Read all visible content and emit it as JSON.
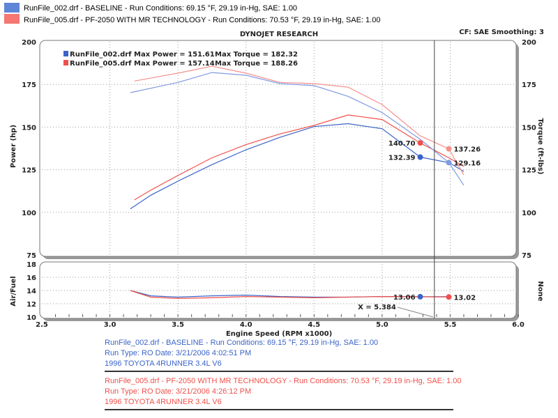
{
  "header": {
    "runs": [
      {
        "label": "RunFile_002.drf - BASELINE  -  Run Conditions: 69.15 °F, 29.19 in-Hg, SAE: 1.00",
        "color": "#3a63c8"
      },
      {
        "label": "RunFile_005.drf - PF-2050 WITH MR TECHNOLOGY  -  Run Conditions: 70.53 °F, 29.19 in-Hg, SAE: 1.00",
        "color": "#f0504a"
      }
    ],
    "title": "DYNOJET RESEARCH",
    "cf": "CF: SAE  Smoothing: 3"
  },
  "chart_data": [
    {
      "type": "line",
      "xlabel": "Engine Speed (RPM x1000)",
      "ylabel": "Power (hp)",
      "y2label": "Torque (ft-lbs)",
      "xlim": [
        2.5,
        6.0
      ],
      "ylim": [
        75,
        200
      ],
      "y2lim": [
        75,
        200
      ],
      "xticks": [
        "2.5",
        "3.0",
        "3.5",
        "4.0",
        "4.5",
        "5.0",
        "5.5",
        "6.0"
      ],
      "yticks": [
        "75",
        "100",
        "125",
        "150",
        "175",
        "200"
      ],
      "grid": true,
      "legend": [
        {
          "text": "RunFile_002.drf Max Power = 151.61",
          "torque": "Max Torque = 182.32",
          "color": "#3a63c8"
        },
        {
          "text": "RunFile_005.drf Max Power = 157.14",
          "torque": "Max Torque = 188.26",
          "color": "#f0504a"
        }
      ],
      "cursor_x": 5.384,
      "cursor_label": "X = 5.384",
      "series": [
        {
          "name": "RunFile_002.drf Power",
          "color": "#3a63c8",
          "x": [
            3.15,
            3.3,
            3.5,
            3.75,
            4.0,
            4.25,
            4.5,
            4.75,
            5.0,
            5.28,
            5.49,
            5.6
          ],
          "y": [
            102,
            110,
            118.3,
            128,
            136.7,
            144,
            150.3,
            152,
            149,
            132.39,
            129.16,
            124
          ]
        },
        {
          "name": "RunFile_005.drf Power",
          "color": "#f0504a",
          "x": [
            3.18,
            3.3,
            3.5,
            3.75,
            4.0,
            4.25,
            4.5,
            4.75,
            5.0,
            5.28,
            5.49,
            5.6
          ],
          "y": [
            107.3,
            113,
            121.6,
            132,
            139.7,
            146,
            151,
            157.1,
            154.4,
            140.7,
            132,
            127
          ]
        },
        {
          "name": "RunFile_002.drf Torque",
          "color": "#7f9ae0",
          "x": [
            3.15,
            3.5,
            3.75,
            4.0,
            4.25,
            4.5,
            4.75,
            5.0,
            5.28,
            5.49,
            5.6
          ],
          "y": [
            170.2,
            176.2,
            182,
            180.4,
            175.5,
            174.3,
            168,
            158.5,
            142.8,
            129.16,
            115.9
          ]
        },
        {
          "name": "RunFile_005.drf Torque",
          "color": "#f5918c",
          "x": [
            3.18,
            3.5,
            3.75,
            4.0,
            4.25,
            4.5,
            4.75,
            5.0,
            5.28,
            5.49,
            5.6
          ],
          "y": [
            177,
            181.6,
            185.7,
            181.6,
            176.2,
            175.5,
            173.4,
            163.2,
            144.8,
            137.26,
            122
          ]
        }
      ],
      "markers": [
        {
          "x": 5.28,
          "y": 140.7,
          "label": "140.70",
          "color": "#f0504a",
          "side": "left"
        },
        {
          "x": 5.28,
          "y": 132.39,
          "label": "132.39",
          "color": "#3a63c8",
          "side": "left"
        },
        {
          "x": 5.49,
          "y": 137.26,
          "label": "137.26",
          "color": "#f5918c",
          "side": "right"
        },
        {
          "x": 5.49,
          "y": 129.16,
          "label": "129.16",
          "color": "#7f9ae0",
          "side": "right"
        }
      ]
    },
    {
      "type": "line",
      "ylabel": "Air/Fuel",
      "y2label": "None",
      "xlim": [
        2.5,
        6.0
      ],
      "ylim": [
        10,
        18
      ],
      "yticks": [
        "10",
        "12",
        "14",
        "16",
        "18"
      ],
      "grid": true,
      "series": [
        {
          "name": "RunFile_002.drf Air/Fuel",
          "color": "#3a63c8",
          "x": [
            3.15,
            3.3,
            3.5,
            3.75,
            4.0,
            4.25,
            4.5,
            4.75,
            5.0,
            5.28,
            5.49
          ],
          "y": [
            14.0,
            13.2,
            13.0,
            13.2,
            13.3,
            13.1,
            13.0,
            13.0,
            13.1,
            13.06,
            13.06
          ]
        },
        {
          "name": "RunFile_005.drf Air/Fuel",
          "color": "#f0504a",
          "x": [
            3.15,
            3.3,
            3.5,
            3.75,
            4.0,
            4.25,
            4.5,
            4.75,
            5.0,
            5.28,
            5.49
          ],
          "y": [
            14.0,
            13.0,
            12.8,
            12.9,
            13.1,
            13.0,
            12.9,
            13.0,
            13.1,
            13.05,
            13.02
          ]
        }
      ],
      "markers": [
        {
          "x": 5.28,
          "y": 13.06,
          "label": "13.06",
          "color": "#3a63c8",
          "side": "left"
        },
        {
          "x": 5.49,
          "y": 13.02,
          "label": "13.02",
          "color": "#f0504a",
          "side": "right"
        }
      ]
    }
  ],
  "footer": {
    "runs": [
      {
        "lines": [
          "RunFile_002.drf - BASELINE  -  Run Conditions: 69.15 °F, 29.19 in-Hg, SAE: 1.00",
          "Run Type: RO  Date: 3/21/2006 4:02:51 PM",
          "1996 TOYOTA 4RUNNER 3.4L V6"
        ],
        "color": "#3a63c8"
      },
      {
        "lines": [
          "RunFile_005.drf - PF-2050 WITH MR TECHNOLOGY  -  Run Conditions: 70.53 °F, 29.19 in-Hg, SAE: 1.00",
          "Run Type: RO  Date: 3/21/2006 4:26:12 PM",
          "1996 TOYOTA 4RUNNER 3.4L V6"
        ],
        "color": "#f0504a"
      }
    ]
  }
}
